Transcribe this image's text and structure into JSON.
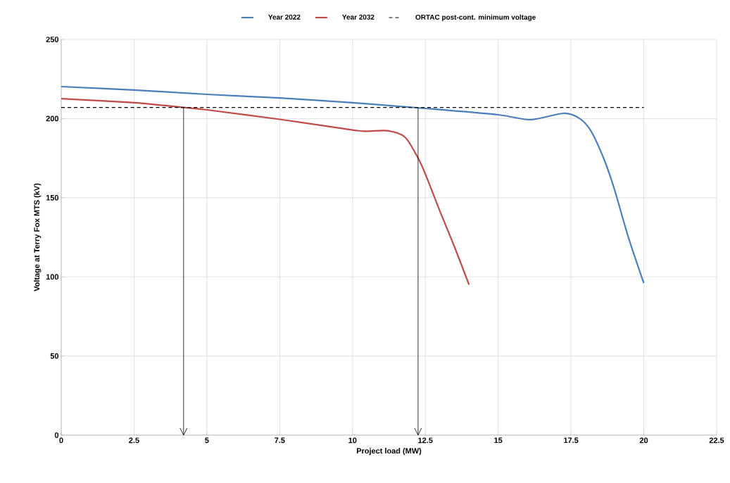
{
  "chart_data": {
    "type": "line",
    "xlabel": "Project load (MW)",
    "ylabel": "Voltage at Terry Fox MTS (kV)",
    "xlim": [
      0,
      22.5
    ],
    "xticks": [
      0,
      2.5,
      5,
      7.5,
      10,
      12.5,
      15,
      17.5,
      20,
      22.5
    ],
    "ylim": [
      0,
      250
    ],
    "yticks": [
      0,
      50,
      100,
      150,
      200,
      250
    ],
    "grid": true,
    "legend": "top",
    "marker": "none",
    "series": [
      {
        "name": "Year 2022",
        "color": "#4a7ebb",
        "line_style": "solid",
        "x": [
          0,
          2.5,
          5,
          7.5,
          10,
          12.5,
          15,
          16.1,
          17.25,
          17.8,
          18.2,
          18.67,
          19.0,
          19.47,
          20
        ],
        "values": [
          220.2,
          218,
          215.3,
          213,
          210,
          206.4,
          202.4,
          199.3,
          203.3,
          200,
          191.7,
          172.6,
          154.8,
          125,
          96
        ]
      },
      {
        "name": "Year 2032",
        "color": "#be4b48",
        "line_style": "solid",
        "x": [
          0,
          2.5,
          4.2,
          5,
          7.5,
          10,
          10.5,
          11.2,
          11.8,
          12.25,
          12.5,
          13,
          13.5,
          14
        ],
        "values": [
          212.6,
          210,
          207,
          205.5,
          199.5,
          192.8,
          192,
          192.3,
          188.3,
          175,
          165,
          141.5,
          119,
          95
        ]
      },
      {
        "name": "ORTAC post-cont. minimum voltage",
        "color": "#000000",
        "line_style": "dashed",
        "x": [
          0,
          20
        ],
        "values": [
          207,
          207
        ]
      },
      {
        "color": "#000000",
        "line_style": "solid",
        "x": [
          4.2,
          4.2
        ],
        "values": [
          207,
          0
        ]
      },
      {
        "color": "#000000",
        "line_style": "solid",
        "x": [
          12.25,
          12.25
        ],
        "values": [
          207,
          0
        ]
      }
    ]
  }
}
